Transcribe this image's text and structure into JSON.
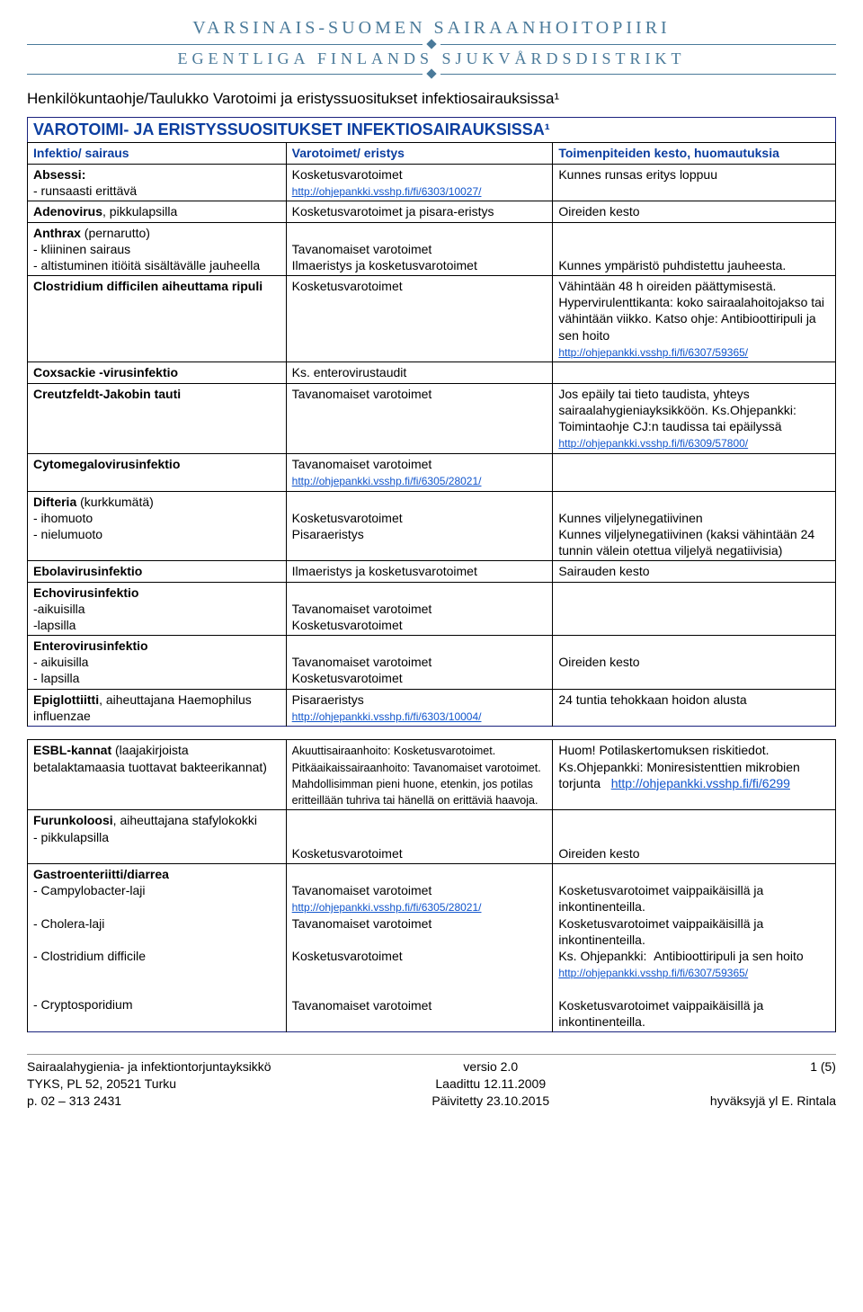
{
  "logo": {
    "line1": "VARSINAIS-SUOMEN SAIRAANHOITOPIIRI",
    "line2": "EGENTLIGA FINLANDS SJUKVÅRDSDISTRIKT"
  },
  "doc_subtitle": "Henkilökuntaohje/Taulukko Varotoimi ja eristyssuositukset infektiosairauksissa¹",
  "doc_title": "VAROTOIMI- JA ERISTYSSUOSITUKSET INFEKTIOSAIRAUKSISSA¹",
  "headers": {
    "c1": "Infektio/ sairaus",
    "c2": "Varotoimet/ eristys",
    "c3": "Toimenpiteiden kesto, huomautuksia"
  },
  "rows1": [
    {
      "c1": "<b>Absessi:</b><br>- runsaasti erittävä",
      "c2": "Kosketusvarotoimet<br><a class='link' data-interactable='true' data-name='link-10027'>http://ohjepankki.vsshp.fi/fi/6303/10027/</a>",
      "c3": "Kunnes runsas eritys loppuu"
    },
    {
      "c1": "<b>Adenovirus</b>, pikkulapsilla",
      "c2": "Kosketusvarotoimet ja pisara-eristys",
      "c3": "Oireiden kesto"
    },
    {
      "c1": "<b>Anthrax</b> (pernarutto)<br>- kliininen sairaus<br>- altistuminen itiöitä sisältävälle jauheella",
      "c2": "<br>Tavanomaiset varotoimet<br>Ilmaeristys ja kosketusvarotoimet",
      "c3": "<br><br>Kunnes ympäristö puhdistettu jauheesta."
    },
    {
      "c1": "<b>Clostridium difficilen aiheuttama ripuli</b>",
      "c2": "Kosketusvarotoimet",
      "c3": "Vähintään 48 h oireiden päättymisestä. Hypervirulenttikanta: koko sairaalahoitojakso tai vähintään viikko. Katso ohje: Antibioottiripuli ja sen hoito<br><a class='link' data-interactable='true' data-name='link-59365a'>http://ohjepankki.vsshp.fi/fi/6307/59365/</a>"
    },
    {
      "c1": "<b>Coxsackie -virusinfektio</b>",
      "c2": "Ks. enterovirustaudit",
      "c3": ""
    },
    {
      "c1": "<b>Creutzfeldt-Jakobin tauti</b>",
      "c2": "Tavanomaiset varotoimet",
      "c3": "Jos epäily tai tieto taudista, yhteys sairaalahygieniayksikköön. Ks.Ohjepankki: Toimintaohje CJ:n taudissa tai epäilyssä<br><a class='link' data-interactable='true' data-name='link-57800'>http://ohjepankki.vsshp.fi/fi/6309/57800/</a>"
    },
    {
      "c1": "<b>Cytomegalovirusinfektio</b>",
      "c2": "Tavanomaiset varotoimet<br><a class='link' data-interactable='true' data-name='link-28021a'>http://ohjepankki.vsshp.fi/fi/6305/28021/</a>",
      "c3": ""
    },
    {
      "c1": "<b>Difteria</b> (kurkkumätä)<br>- ihomuoto<br>- nielumuoto",
      "c2": "<br>Kosketusvarotoimet<br>Pisaraeristys",
      "c3": "<br>Kunnes viljelynegatiivinen<br>Kunnes viljelynegatiivinen (kaksi vähintään 24 tunnin välein otettua viljelyä negatiivisia)"
    },
    {
      "c1": "<b>Ebolavirusinfektio</b>",
      "c2": "Ilmaeristys ja kosketusvarotoimet",
      "c3": "Sairauden kesto"
    },
    {
      "c1": "<b>Echovirusinfektio</b><br>-aikuisilla<br>-lapsilla",
      "c2": "<br>Tavanomaiset varotoimet<br>Kosketusvarotoimet",
      "c3": ""
    },
    {
      "c1": "<b>Enterovirusinfektio</b><br>- aikuisilla<br>- lapsilla",
      "c2": "<br>Tavanomaiset varotoimet<br>Kosketusvarotoimet",
      "c3": "<br>Oireiden kesto"
    },
    {
      "c1": "<b>Epiglottiitti</b>, aiheuttajana Haemophilus influenzae",
      "c2": "Pisaraeristys<br><a class='link' data-interactable='true' data-name='link-10004'>http://ohjepankki.vsshp.fi/fi/6303/10004/</a>",
      "c3": "24 tuntia tehokkaan hoidon alusta"
    }
  ],
  "rows2": [
    {
      "c1": "<b>ESBL-kannat</b> (laajakirjoista betalaktamaasia tuottavat bakteerikannat)",
      "c2": "<span class='small'>Akuuttisairaanhoito: Kosketusvarotoimet. Pitkäaikaissairaanhoito: Tavanomaiset varotoimet. Mahdollisimman pieni huone, etenkin, jos potilas eritteillään tuhriva tai hänellä on erittäviä haavoja.</span>",
      "c3": "Huom! Potilaskertomuksen riskitiedot. Ks.Ohjepankki: Moniresistenttien mikrobien torjunta &nbsp;&nbsp;<a class='link-normal' data-interactable='true' data-name='link-6299'>http://ohjepankki.vsshp.fi/fi/6299</a>"
    },
    {
      "c1": "<b>Furunkoloosi</b>, aiheuttajana stafylokokki<br>- pikkulapsilla",
      "c2": "<br><br>Kosketusvarotoimet",
      "c3": "<br><br>Oireiden kesto"
    },
    {
      "c1": "<b>Gastroenteriitti/diarrea</b><br>- Campylobacter-laji<br><br>- Cholera-laji<br><br>- Clostridium difficile<br><br><br>- Cryptosporidium",
      "c2": "<br>Tavanomaiset varotoimet<br><a class='link' data-interactable='true' data-name='link-28021b'>http://ohjepankki.vsshp.fi/fi/6305/28021/</a><br>Tavanomaiset varotoimet<br><br>Kosketusvarotoimet<br><br><br>Tavanomaiset varotoimet",
      "c3": "<br>Kosketusvarotoimet vaippaikäisillä ja inkontinenteilla.<br>Kosketusvarotoimet vaippaikäisillä ja inkontinenteilla.<br>Ks. Ohjepankki: &nbsp;Antibioottiripuli ja sen hoito <a class='link' data-interactable='true' data-name='link-59365b'>http://ohjepankki.vsshp.fi/fi/6307/59365/</a><br><br>Kosketusvarotoimet vaippaikäisillä ja inkontinenteilla."
    }
  ],
  "footer": {
    "left": "Sairaalahygienia- ja infektiontorjuntayksikkö<br>TYKS, PL 52, 20521 Turku<br>p. 02 – 313 2431",
    "center": "versio 2.0<br>Laadittu 12.11.2009<br>Päivitetty 23.10.2015",
    "right": "1 (5)<br><br>hyväksyjä yl E. Rintala"
  }
}
